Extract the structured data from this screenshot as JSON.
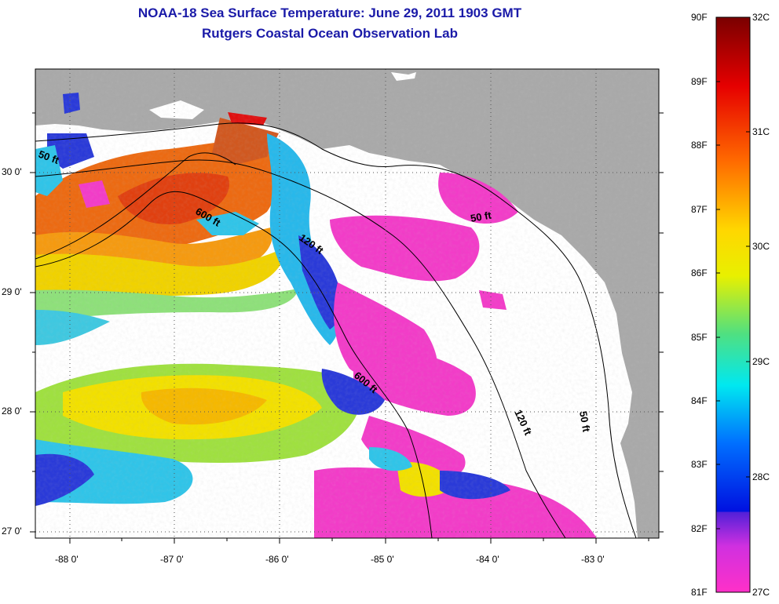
{
  "header": {
    "title": "NOAA-18 Sea Surface Temperature:  June 29, 2011 1903 GMT",
    "subtitle": "Rutgers Coastal Ocean Observation Lab"
  },
  "axes": {
    "x_ticks": [
      "-88 0'",
      "-87 0'",
      "-86 0'",
      "-85 0'",
      "-84 0'",
      "-83 0'"
    ],
    "y_ticks": [
      "30 0'",
      "29 0'",
      "28 0'",
      "27 0'"
    ]
  },
  "contours": {
    "labels": [
      "50 ft",
      "600 ft",
      "120 ft",
      "50 ft",
      "600 ft",
      "120 ft",
      "50 ft"
    ]
  },
  "colorbar": {
    "fahrenheit": [
      "90F",
      "89F",
      "88F",
      "87F",
      "86F",
      "85F",
      "84F",
      "83F",
      "82F",
      "81F"
    ],
    "celsius": [
      "32C",
      "31C",
      "30C",
      "29C",
      "28C",
      "27C"
    ]
  },
  "colors": {
    "land": "#a9a9a9",
    "title_text": "#1a1aa8",
    "warm": "#f05a0a",
    "hot": "#e01010",
    "mid": "#f2e600",
    "cool": "#20c8e8",
    "cold": "#1a2ad0",
    "pink": "#f23cc8"
  }
}
